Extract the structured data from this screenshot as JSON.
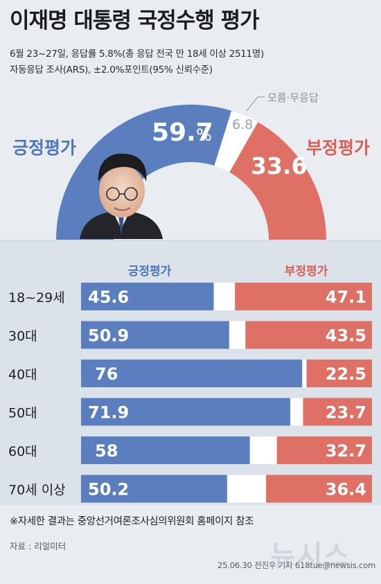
{
  "header": {
    "title": "이재명 대통령 국정수행 평가",
    "subtitle_line1": "6월 23~27일, 응답률 5.8%(총 응답 전국 만 18세 이상 2511명)",
    "subtitle_line2": "자동응답 조사(ARS), ±2.0%포인트(95% 신뢰수준)"
  },
  "overall": {
    "positive_label": "긍정평가",
    "negative_label": "부정평가",
    "unknown_label": "모름·무응답",
    "positive_value": "59.7",
    "positive_unit": "%",
    "unknown_value": "6.8",
    "negative_value": "33.6"
  },
  "breakdown_headers": {
    "positive": "긍정평가",
    "negative": "부정평가"
  },
  "colors": {
    "positive": "#5b7fbe",
    "negative": "#de7065",
    "unknown": "#ffffff",
    "panel": "#dbe2ea"
  },
  "chart_data": [
    {
      "type": "pie",
      "categories": [
        "긍정평가",
        "모름·무응답",
        "부정평가"
      ],
      "values": [
        59.7,
        6.8,
        33.6
      ]
    },
    {
      "type": "bar",
      "stacked": true,
      "orientation": "horizontal",
      "categories": [
        "18~29세",
        "30대",
        "40대",
        "50대",
        "60대",
        "70세 이상"
      ],
      "series": [
        {
          "name": "긍정평가",
          "values": [
            45.6,
            50.9,
            76,
            71.9,
            58,
            50.2
          ]
        },
        {
          "name": "부정평가",
          "values": [
            47.1,
            43.5,
            22.5,
            23.7,
            32.7,
            36.4
          ]
        }
      ]
    }
  ],
  "footer": {
    "note": "※자세한 결과는 중앙선거여론조사심의위원회 홈페이지 참조",
    "source": "자료 : 리얼미터",
    "credit": "25.06.30 전진우 기자 618tue@newsis.com",
    "watermark": "뉴시스"
  }
}
